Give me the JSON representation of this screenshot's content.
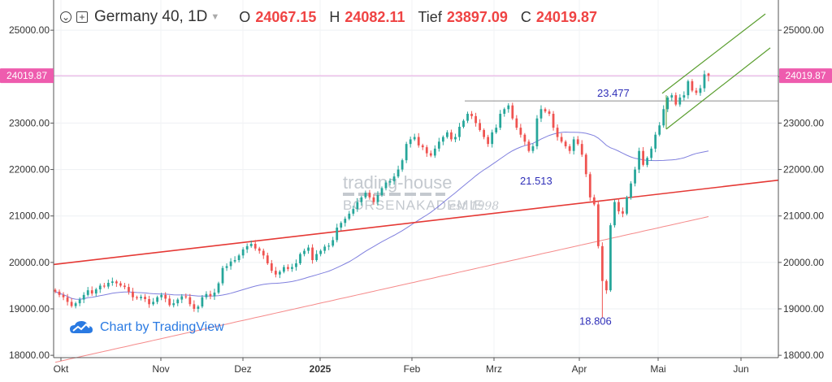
{
  "header": {
    "symbol": "Germany 40, 1D",
    "open_label": "O",
    "open": "24067.15",
    "high_label": "H",
    "high": "24082.11",
    "low_label": "Tief",
    "low": "23897.09",
    "close_label": "C",
    "close": "24019.87",
    "icons": [
      "chevron-down-circle-icon",
      "plus-square-icon",
      "caret-down-icon"
    ]
  },
  "watermark": {
    "line1": "trading-house",
    "line2": "BÖRSENAKADEMIE",
    "line3": "est 1998"
  },
  "credit": {
    "text": "Chart by TradingView",
    "icon": "tradingview-cloud-icon"
  },
  "colors": {
    "up": "#26a69a",
    "down": "#ef5350",
    "trend": "#e53935",
    "channel": "#5a9e2f",
    "ma_short": "#6a6ad8",
    "ma_long": "#f26d6d",
    "resistance": "#9a9a9a",
    "price_line": "#e7a6e2"
  },
  "chart_data": {
    "type": "candlestick",
    "title": "Germany 40, 1D",
    "x_months": [
      "Okt",
      "Nov",
      "Dez",
      "2025",
      "Feb",
      "Mrz",
      "Apr",
      "Mai",
      "Jun"
    ],
    "y_ticks": [
      "18000.00",
      "19000.00",
      "20000.00",
      "21000.00",
      "22000.00",
      "23000.00",
      "24000.00",
      "25000.00"
    ],
    "ylim": [
      17950,
      25650
    ],
    "last_price_label": "24019.87",
    "annotations": [
      "23.477",
      "21.513",
      "18.806"
    ],
    "ohlc": {
      "open": 24067.15,
      "high": 24082.11,
      "low": 23897.09,
      "close": 24019.87
    },
    "resistance_level": 23477,
    "daily_closes": [
      19370,
      19300,
      19250,
      19150,
      19060,
      19120,
      19200,
      19300,
      19400,
      19330,
      19420,
      19500,
      19480,
      19560,
      19590,
      19550,
      19500,
      19470,
      19370,
      19250,
      19230,
      19260,
      19210,
      19100,
      19150,
      19250,
      19300,
      19220,
      19080,
      19120,
      19200,
      19270,
      19250,
      19100,
      19000,
      19050,
      19250,
      19320,
      19270,
      19350,
      19550,
      19880,
      19920,
      20020,
      20050,
      20150,
      20280,
      20350,
      20400,
      20300,
      20250,
      20150,
      19980,
      19820,
      19740,
      19800,
      19900,
      19860,
      19900,
      19980,
      20180,
      20250,
      20320,
      20050,
      20180,
      20250,
      20340,
      20360,
      20480,
      20750,
      20850,
      20940,
      21050,
      21150,
      21300,
      21400,
      21500,
      21400,
      21300,
      21450,
      21600,
      21720,
      21750,
      21850,
      22000,
      22200,
      22550,
      22650,
      22700,
      22520,
      22480,
      22350,
      22300,
      22450,
      22600,
      22700,
      22800,
      22650,
      22700,
      22920,
      23050,
      23200,
      23150,
      23000,
      22850,
      22700,
      22550,
      22800,
      22900,
      23200,
      23300,
      23380,
      23100,
      22900,
      22750,
      22600,
      22400,
      22500,
      23100,
      23300,
      23250,
      23200,
      22900,
      22700,
      22600,
      22500,
      22400,
      22650,
      22550,
      22320,
      21900,
      21400,
      21250,
      20350,
      19600,
      19400,
      20800,
      21300,
      21100,
      21050,
      21400,
      21700,
      22000,
      22400,
      22100,
      22250,
      22450,
      22750,
      22950,
      23300,
      23550,
      23600,
      23400,
      23550,
      23600,
      23900,
      23700,
      23650,
      23750,
      24050,
      24020
    ],
    "moving_averages": [
      {
        "key": "ma_short",
        "label": "21.513"
      },
      {
        "key": "ma_long"
      }
    ]
  }
}
